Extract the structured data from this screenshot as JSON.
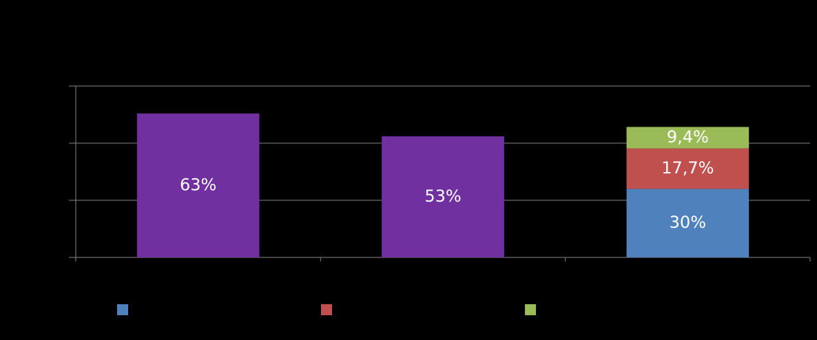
{
  "chart_data": {
    "type": "bar",
    "stacked": true,
    "categories": [
      null,
      null,
      null
    ],
    "ylim": [
      0,
      75
    ],
    "yticks": [
      0,
      25,
      50,
      75
    ],
    "grid": true,
    "legend": "bottom",
    "totals": {
      "color": "#7030a0",
      "values": [
        63,
        53,
        null
      ],
      "value_labels": [
        "63%",
        "53%",
        null
      ]
    },
    "series": [
      {
        "color": "#4f81bd",
        "values": [
          null,
          null,
          30
        ],
        "value_labels": [
          null,
          null,
          "30%"
        ]
      },
      {
        "color": "#c0504d",
        "values": [
          null,
          null,
          17.7
        ],
        "value_labels": [
          null,
          null,
          "17,7%"
        ]
      },
      {
        "color": "#9bbb59",
        "values": [
          null,
          null,
          9.4
        ],
        "value_labels": [
          null,
          null,
          "9,4%"
        ]
      }
    ]
  }
}
